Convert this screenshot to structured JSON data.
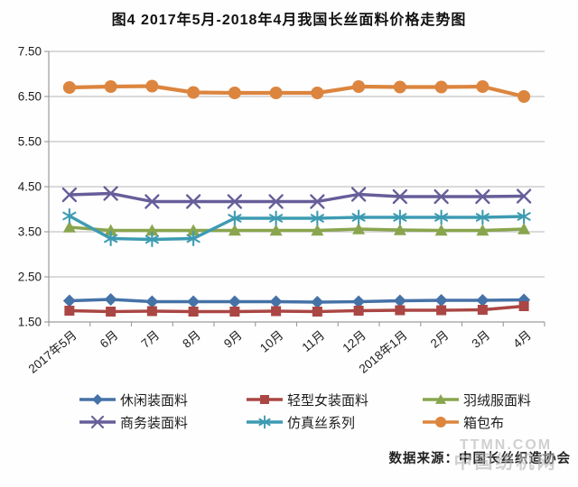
{
  "title": "图4  2017年5月-2018年4月我国长丝面料价格走势图",
  "source_label": "数据来源：中国长丝织造协会",
  "watermark": {
    "line1": "TTMN.COM",
    "line2": "中国纺机网"
  },
  "colors": {
    "grid": "#b5b5b5",
    "axis": "#9a9a9a",
    "casual_blue": "#4572A7",
    "women_red": "#AA4643",
    "down_green": "#89A54E",
    "business_purple": "#665E99",
    "silk_cyan": "#3D9BB2",
    "luggage_orange": "#DC853E"
  },
  "chart_data": {
    "type": "line",
    "title": "图4  2017年5月-2018年4月我国长丝面料价格走势图",
    "categories": [
      "2017年5月",
      "6月",
      "7月",
      "8月",
      "9月",
      "10月",
      "11月",
      "12月",
      "2018年1月",
      "2月",
      "3月",
      "4月"
    ],
    "series": [
      {
        "name": "休闲装面料",
        "marker": "diamond",
        "color": "#4572A7",
        "values": [
          1.97,
          2.0,
          1.95,
          1.95,
          1.95,
          1.95,
          1.94,
          1.95,
          1.97,
          1.98,
          1.98,
          1.99
        ]
      },
      {
        "name": "轻型女装面料",
        "marker": "square",
        "color": "#AA4643",
        "values": [
          1.75,
          1.73,
          1.74,
          1.73,
          1.73,
          1.74,
          1.73,
          1.75,
          1.76,
          1.76,
          1.77,
          1.85
        ]
      },
      {
        "name": "羽绒服面料",
        "marker": "triangle",
        "color": "#89A54E",
        "values": [
          3.6,
          3.53,
          3.53,
          3.53,
          3.53,
          3.53,
          3.53,
          3.56,
          3.54,
          3.53,
          3.53,
          3.56
        ]
      },
      {
        "name": "商务装面料",
        "marker": "x",
        "color": "#665E99",
        "values": [
          4.32,
          4.35,
          4.17,
          4.17,
          4.17,
          4.17,
          4.17,
          4.33,
          4.28,
          4.28,
          4.28,
          4.29
        ]
      },
      {
        "name": "仿真丝系列",
        "marker": "star",
        "color": "#3D9BB2",
        "values": [
          3.85,
          3.35,
          3.33,
          3.35,
          3.8,
          3.8,
          3.8,
          3.82,
          3.82,
          3.82,
          3.82,
          3.84
        ]
      },
      {
        "name": "箱包布",
        "marker": "circle",
        "color": "#DC853E",
        "values": [
          6.7,
          6.72,
          6.73,
          6.59,
          6.58,
          6.58,
          6.58,
          6.72,
          6.71,
          6.71,
          6.72,
          6.5
        ]
      }
    ],
    "ylim": [
      1.5,
      7.5
    ],
    "ytick_step": 1.0,
    "ytick_labels": [
      "1.50",
      "2.50",
      "3.50",
      "4.50",
      "5.50",
      "6.50",
      "7.50"
    ],
    "xlabel": "",
    "ylabel": "",
    "grid": true,
    "legend_position": "bottom"
  }
}
